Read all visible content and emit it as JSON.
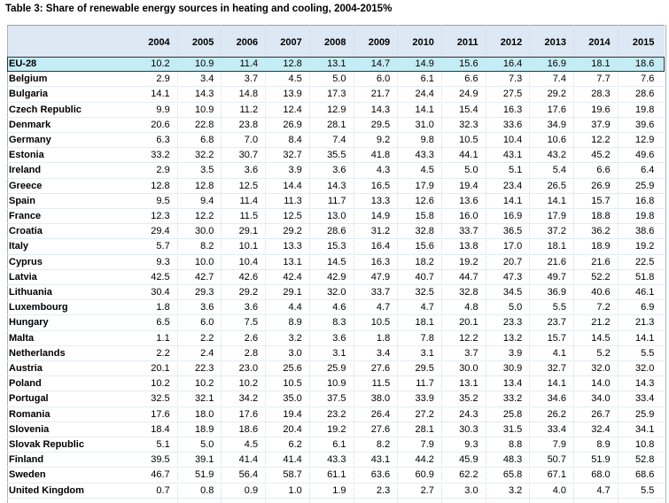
{
  "title": "Table 3: Share of renewable energy sources in heating and cooling, 2004-2015%",
  "table": {
    "header": [
      "2004",
      "2005",
      "2006",
      "2007",
      "2008",
      "2009",
      "2010",
      "2011",
      "2012",
      "2013",
      "2014",
      "2015"
    ],
    "rows": [
      {
        "label": "EU-28",
        "values": [
          "10.2",
          "10.9",
          "11.4",
          "12.8",
          "13.1",
          "14.7",
          "14.9",
          "15.6",
          "16.4",
          "16.9",
          "18.1",
          "18.6"
        ]
      },
      {
        "label": "Belgium",
        "values": [
          "2.9",
          "3.4",
          "3.7",
          "4.5",
          "5.0",
          "6.0",
          "6.1",
          "6.6",
          "7.3",
          "7.4",
          "7.7",
          "7.6"
        ]
      },
      {
        "label": "Bulgaria",
        "values": [
          "14.1",
          "14.3",
          "14.8",
          "13.9",
          "17.3",
          "21.7",
          "24.4",
          "24.9",
          "27.5",
          "29.2",
          "28.3",
          "28.6"
        ]
      },
      {
        "label": "Czech Republic",
        "values": [
          "9.9",
          "10.9",
          "11.2",
          "12.4",
          "12.9",
          "14.3",
          "14.1",
          "15.4",
          "16.3",
          "17.6",
          "19.6",
          "19.8"
        ]
      },
      {
        "label": "Denmark",
        "values": [
          "20.6",
          "22.8",
          "23.8",
          "26.9",
          "28.1",
          "29.5",
          "31.0",
          "32.3",
          "33.6",
          "34.9",
          "37.9",
          "39.6"
        ]
      },
      {
        "label": "Germany",
        "values": [
          "6.3",
          "6.8",
          "7.0",
          "8.4",
          "7.4",
          "9.2",
          "9.8",
          "10.5",
          "10.4",
          "10.6",
          "12.2",
          "12.9"
        ]
      },
      {
        "label": "Estonia",
        "values": [
          "33.2",
          "32.2",
          "30.7",
          "32.7",
          "35.5",
          "41.8",
          "43.3",
          "44.1",
          "43.1",
          "43.2",
          "45.2",
          "49.6"
        ]
      },
      {
        "label": "Ireland",
        "values": [
          "2.9",
          "3.5",
          "3.6",
          "3.9",
          "3.6",
          "4.3",
          "4.5",
          "5.0",
          "5.1",
          "5.4",
          "6.6",
          "6.4"
        ]
      },
      {
        "label": "Greece",
        "values": [
          "12.8",
          "12.8",
          "12.5",
          "14.4",
          "14.3",
          "16.5",
          "17.9",
          "19.4",
          "23.4",
          "26.5",
          "26.9",
          "25.9"
        ]
      },
      {
        "label": "Spain",
        "values": [
          "9.5",
          "9.4",
          "11.4",
          "11.3",
          "11.7",
          "13.3",
          "12.6",
          "13.6",
          "14.1",
          "14.1",
          "15.7",
          "16.8"
        ]
      },
      {
        "label": "France",
        "values": [
          "12.3",
          "12.2",
          "11.5",
          "12.5",
          "13.0",
          "14.9",
          "15.8",
          "16.0",
          "16.9",
          "17.9",
          "18.8",
          "19.8"
        ]
      },
      {
        "label": "Croatia",
        "values": [
          "29.4",
          "30.0",
          "29.1",
          "29.2",
          "28.6",
          "31.2",
          "32.8",
          "33.7",
          "36.5",
          "37.2",
          "36.2",
          "38.6"
        ]
      },
      {
        "label": "Italy",
        "values": [
          "5.7",
          "8.2",
          "10.1",
          "13.3",
          "15.3",
          "16.4",
          "15.6",
          "13.8",
          "17.0",
          "18.1",
          "18.9",
          "19.2"
        ]
      },
      {
        "label": "Cyprus",
        "values": [
          "9.3",
          "10.0",
          "10.4",
          "13.1",
          "14.5",
          "16.3",
          "18.2",
          "19.2",
          "20.7",
          "21.6",
          "21.6",
          "22.5"
        ]
      },
      {
        "label": "Latvia",
        "values": [
          "42.5",
          "42.7",
          "42.6",
          "42.4",
          "42.9",
          "47.9",
          "40.7",
          "44.7",
          "47.3",
          "49.7",
          "52.2",
          "51.8"
        ]
      },
      {
        "label": "Lithuania",
        "values": [
          "30.4",
          "29.3",
          "29.2",
          "29.1",
          "32.0",
          "33.7",
          "32.5",
          "32.8",
          "34.5",
          "36.9",
          "40.6",
          "46.1"
        ]
      },
      {
        "label": "Luxembourg",
        "values": [
          "1.8",
          "3.6",
          "3.6",
          "4.4",
          "4.6",
          "4.7",
          "4.7",
          "4.8",
          "5.0",
          "5.5",
          "7.2",
          "6.9"
        ]
      },
      {
        "label": "Hungary",
        "values": [
          "6.5",
          "6.0",
          "7.5",
          "8.9",
          "8.3",
          "10.5",
          "18.1",
          "20.1",
          "23.3",
          "23.7",
          "21.2",
          "21.3"
        ]
      },
      {
        "label": "Malta",
        "values": [
          "1.1",
          "2.2",
          "2.6",
          "3.2",
          "3.6",
          "1.8",
          "7.8",
          "12.2",
          "13.2",
          "15.7",
          "14.5",
          "14.1"
        ]
      },
      {
        "label": "Netherlands",
        "values": [
          "2.2",
          "2.4",
          "2.8",
          "3.0",
          "3.1",
          "3.4",
          "3.1",
          "3.7",
          "3.9",
          "4.1",
          "5.2",
          "5.5"
        ]
      },
      {
        "label": "Austria",
        "values": [
          "20.1",
          "22.3",
          "23.0",
          "25.6",
          "25.9",
          "27.6",
          "29.5",
          "30.0",
          "30.9",
          "32.7",
          "32.0",
          "32.0"
        ]
      },
      {
        "label": "Poland",
        "values": [
          "10.2",
          "10.2",
          "10.2",
          "10.5",
          "10.9",
          "11.5",
          "11.7",
          "13.1",
          "13.4",
          "14.1",
          "14.0",
          "14.3"
        ]
      },
      {
        "label": "Portugal",
        "values": [
          "32.5",
          "32.1",
          "34.2",
          "35.0",
          "37.5",
          "38.0",
          "33.9",
          "35.2",
          "33.2",
          "34.6",
          "34.0",
          "33.4"
        ]
      },
      {
        "label": "Romania",
        "values": [
          "17.6",
          "18.0",
          "17.6",
          "19.4",
          "23.2",
          "26.4",
          "27.2",
          "24.3",
          "25.8",
          "26.2",
          "26.7",
          "25.9"
        ]
      },
      {
        "label": "Slovenia",
        "values": [
          "18.4",
          "18.9",
          "18.6",
          "20.4",
          "19.2",
          "27.6",
          "28.1",
          "30.3",
          "31.5",
          "33.4",
          "32.4",
          "34.1"
        ]
      },
      {
        "label": "Slovak Republic",
        "values": [
          "5.1",
          "5.0",
          "4.5",
          "6.2",
          "6.1",
          "8.2",
          "7.9",
          "9.3",
          "8.8",
          "7.9",
          "8.9",
          "10.8"
        ]
      },
      {
        "label": "Finland",
        "values": [
          "39.5",
          "39.1",
          "41.4",
          "41.4",
          "43.3",
          "43.1",
          "44.2",
          "45.9",
          "48.3",
          "50.7",
          "51.9",
          "52.8"
        ]
      },
      {
        "label": "Sweden",
        "values": [
          "46.7",
          "51.9",
          "56.4",
          "58.7",
          "61.1",
          "63.6",
          "60.9",
          "62.2",
          "65.8",
          "67.1",
          "68.0",
          "68.6"
        ]
      },
      {
        "label": "United Kingdom",
        "values": [
          "0.7",
          "0.8",
          "0.9",
          "1.0",
          "1.9",
          "2.3",
          "2.7",
          "3.0",
          "3.2",
          "4.0",
          "4.7",
          "5.5"
        ]
      }
    ]
  }
}
